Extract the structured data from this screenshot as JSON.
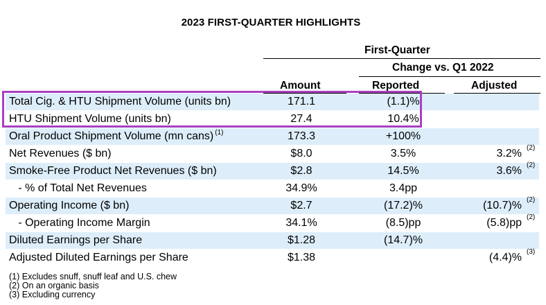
{
  "title": "2023 FIRST-QUARTER HIGHLIGHTS",
  "headers": {
    "period": "First-Quarter",
    "change": "Change vs. Q1 2022",
    "amount": "Amount",
    "reported": "Reported",
    "adjusted": "Adjusted"
  },
  "rows": [
    {
      "label": "Total Cig. & HTU Shipment Volume (units bn)",
      "amount": "171.1",
      "reported": "(1.1)%",
      "adjusted": "",
      "label_note": "",
      "adjusted_note": ""
    },
    {
      "label": "HTU Shipment Volume (units bn)",
      "amount": "27.4",
      "reported": "10.4%",
      "adjusted": "",
      "label_note": "",
      "adjusted_note": ""
    },
    {
      "label": "Oral Product Shipment Volume (mn cans)",
      "amount": "173.3",
      "reported": "+100%",
      "adjusted": "",
      "label_note": "(1)",
      "adjusted_note": ""
    },
    {
      "label": "Net Revenues ($ bn)",
      "amount": "$8.0",
      "reported": "3.5%",
      "adjusted": "3.2%",
      "label_note": "",
      "adjusted_note": "(2)"
    },
    {
      "label": "Smoke-Free Product Net Revenues ($ bn)",
      "amount": "$2.8",
      "reported": "14.5%",
      "adjusted": "3.6%",
      "label_note": "",
      "adjusted_note": "(2)"
    },
    {
      "label": "   - % of Total Net Revenues",
      "amount": "34.9%",
      "reported": "3.4pp",
      "adjusted": "",
      "label_note": "",
      "adjusted_note": ""
    },
    {
      "label": "Operating Income ($ bn)",
      "amount": "$2.7",
      "reported": "(17.2)%",
      "adjusted": "(10.7)%",
      "label_note": "",
      "adjusted_note": "(2)"
    },
    {
      "label": "   - Operating Income Margin",
      "amount": "34.1%",
      "reported": "(8.5)pp",
      "adjusted": "(5.8)pp",
      "label_note": "",
      "adjusted_note": "(2)"
    },
    {
      "label": "Diluted Earnings per Share",
      "amount": "$1.28",
      "reported": "(14.7)%",
      "adjusted": "",
      "label_note": "",
      "adjusted_note": ""
    },
    {
      "label": "Adjusted Diluted Earnings per Share",
      "amount": "$1.38",
      "reported": "",
      "adjusted": "(4.4)%",
      "label_note": "",
      "adjusted_note": "(3)"
    }
  ],
  "footnotes": [
    "(1) Excludes snuff, snuff leaf and U.S. chew",
    "(2) On an organic basis",
    "(3) Excluding currency"
  ],
  "colors": {
    "row_shade": "#ddeefa",
    "highlight_border": "#a93fc1"
  }
}
